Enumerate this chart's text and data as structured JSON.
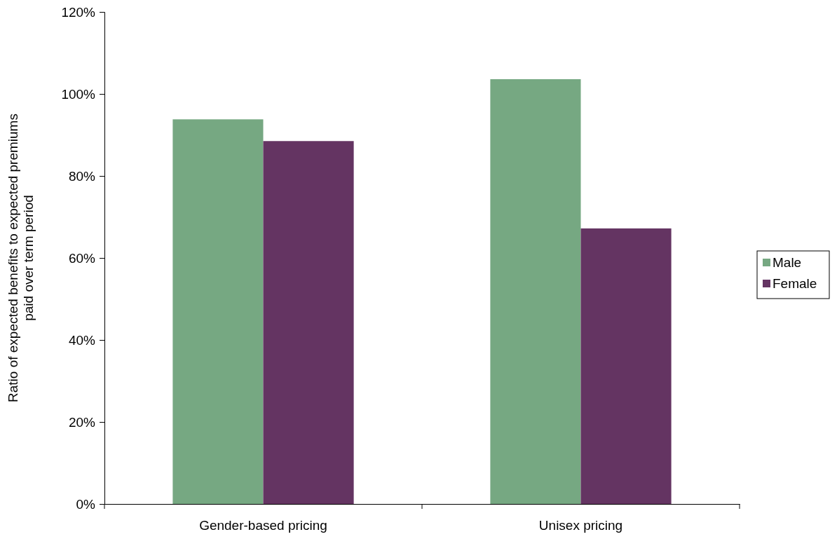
{
  "chart_data": {
    "type": "bar",
    "ylabel": "Ratio of expected benefits to expected premiums paid over term period",
    "categories": [
      "Gender-based pricing",
      "Unisex pricing"
    ],
    "series": [
      {
        "name": "Male",
        "color": "#76a882",
        "values": [
          93.8,
          103.6
        ]
      },
      {
        "name": "Female",
        "color": "#643462",
        "values": [
          88.5,
          67.2
        ]
      }
    ],
    "ylim": [
      0,
      120
    ],
    "yticks": [
      {
        "value": 0,
        "label": "0%"
      },
      {
        "value": 20,
        "label": "20%"
      },
      {
        "value": 40,
        "label": "40%"
      },
      {
        "value": 60,
        "label": "60%"
      },
      {
        "value": 80,
        "label": "80%"
      },
      {
        "value": 100,
        "label": "100%"
      },
      {
        "value": 120,
        "label": "120%"
      }
    ],
    "grid": false,
    "legend": "right"
  }
}
